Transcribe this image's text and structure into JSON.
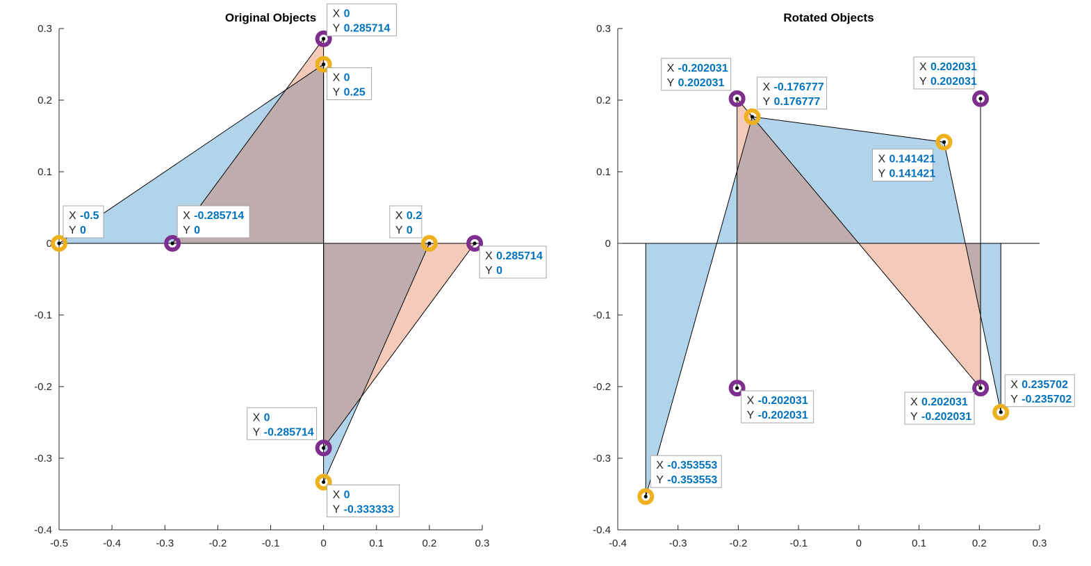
{
  "colors": {
    "blue_fill": "#0072bd",
    "orange_fill": "#d95319",
    "marker_purple": "#7e2f8e",
    "marker_yellow": "#edb120",
    "datatip_value": "#0072bd"
  },
  "chart_data": [
    {
      "type": "area",
      "title": "Original Objects",
      "xlim": [
        -0.5,
        0.3
      ],
      "ylim": [
        -0.4,
        0.3
      ],
      "xticks": [
        "-0.5",
        "-0.4",
        "-0.3",
        "-0.2",
        "-0.1",
        "0",
        "0.1",
        "0.2",
        "0.3"
      ],
      "yticks": [
        "-0.4",
        "-0.3",
        "-0.2",
        "-0.1",
        "0",
        "0.1",
        "0.2",
        "0.3"
      ],
      "series": [
        {
          "points": [
            [
              -0.5,
              0
            ],
            [
              0,
              0.25
            ],
            [
              0,
              0
            ],
            [
              0.2,
              0
            ],
            [
              0,
              -0.333333
            ],
            [
              0,
              0
            ]
          ],
          "fill": "blue"
        },
        {
          "points": [
            [
              -0.285714,
              0
            ],
            [
              0,
              0.285714
            ],
            [
              0,
              0
            ],
            [
              0.285714,
              0
            ],
            [
              0,
              -0.285714
            ],
            [
              0,
              0
            ]
          ],
          "fill": "orange"
        }
      ],
      "datatips": [
        {
          "x": "0",
          "y": "0.285714",
          "px": 0,
          "py": 0.285714,
          "marker": "purple"
        },
        {
          "x": "0",
          "y": "0.25",
          "px": 0,
          "py": 0.25,
          "marker": "yellow"
        },
        {
          "x": "-0.5",
          "y": "0",
          "px": -0.5,
          "py": 0,
          "marker": "yellow"
        },
        {
          "x": "-0.285714",
          "y": "0",
          "px": -0.285714,
          "py": 0,
          "marker": "purple"
        },
        {
          "x": "0.2",
          "y": "0",
          "px": 0.2,
          "py": 0,
          "marker": "yellow"
        },
        {
          "x": "0.285714",
          "y": "0",
          "px": 0.285714,
          "py": 0,
          "marker": "purple"
        },
        {
          "x": "0",
          "y": "-0.285714",
          "px": 0,
          "py": -0.285714,
          "marker": "purple"
        },
        {
          "x": "0",
          "y": "-0.333333",
          "px": 0,
          "py": -0.333333,
          "marker": "yellow"
        }
      ]
    },
    {
      "type": "area",
      "title": "Rotated Objects",
      "xlim": [
        -0.4,
        0.3
      ],
      "ylim": [
        -0.4,
        0.3
      ],
      "xticks": [
        "-0.4",
        "-0.3",
        "-0.2",
        "-0.1",
        "0",
        "0.1",
        "0.2",
        "0.3"
      ],
      "yticks": [
        "-0.4",
        "-0.3",
        "-0.2",
        "-0.1",
        "0",
        "0.1",
        "0.2",
        "0.3"
      ],
      "series": [
        {
          "points": [
            [
              -0.353553,
              -0.353553
            ],
            [
              -0.176777,
              0.176777
            ],
            [
              0.141421,
              0.141421
            ],
            [
              0.235702,
              -0.235702
            ]
          ],
          "fill": "blue"
        },
        {
          "points": [
            [
              -0.202031,
              -0.202031
            ],
            [
              -0.202031,
              0.202031
            ],
            [
              0.202031,
              -0.202031
            ],
            [
              0.202031,
              0.202031
            ]
          ],
          "fill": "orange"
        }
      ],
      "datatips": [
        {
          "x": "-0.202031",
          "y": "0.202031",
          "px": -0.202031,
          "py": 0.202031,
          "marker": "purple"
        },
        {
          "x": "-0.176777",
          "y": "0.176777",
          "px": -0.176777,
          "py": 0.176777,
          "marker": "yellow"
        },
        {
          "x": "0.202031",
          "y": "0.202031",
          "px": 0.202031,
          "py": 0.202031,
          "marker": "purple"
        },
        {
          "x": "0.141421",
          "y": "0.141421",
          "px": 0.141421,
          "py": 0.141421,
          "marker": "yellow"
        },
        {
          "x": "-0.202031",
          "y": "-0.202031",
          "px": -0.202031,
          "py": -0.202031,
          "marker": "purple"
        },
        {
          "x": "0.202031",
          "y": "-0.202031",
          "px": 0.202031,
          "py": -0.202031,
          "marker": "purple"
        },
        {
          "x": "0.235702",
          "y": "-0.235702",
          "px": 0.235702,
          "py": -0.235702,
          "marker": "yellow"
        },
        {
          "x": "-0.353553",
          "y": "-0.353553",
          "px": -0.353553,
          "py": -0.353553,
          "marker": "yellow"
        }
      ]
    }
  ]
}
